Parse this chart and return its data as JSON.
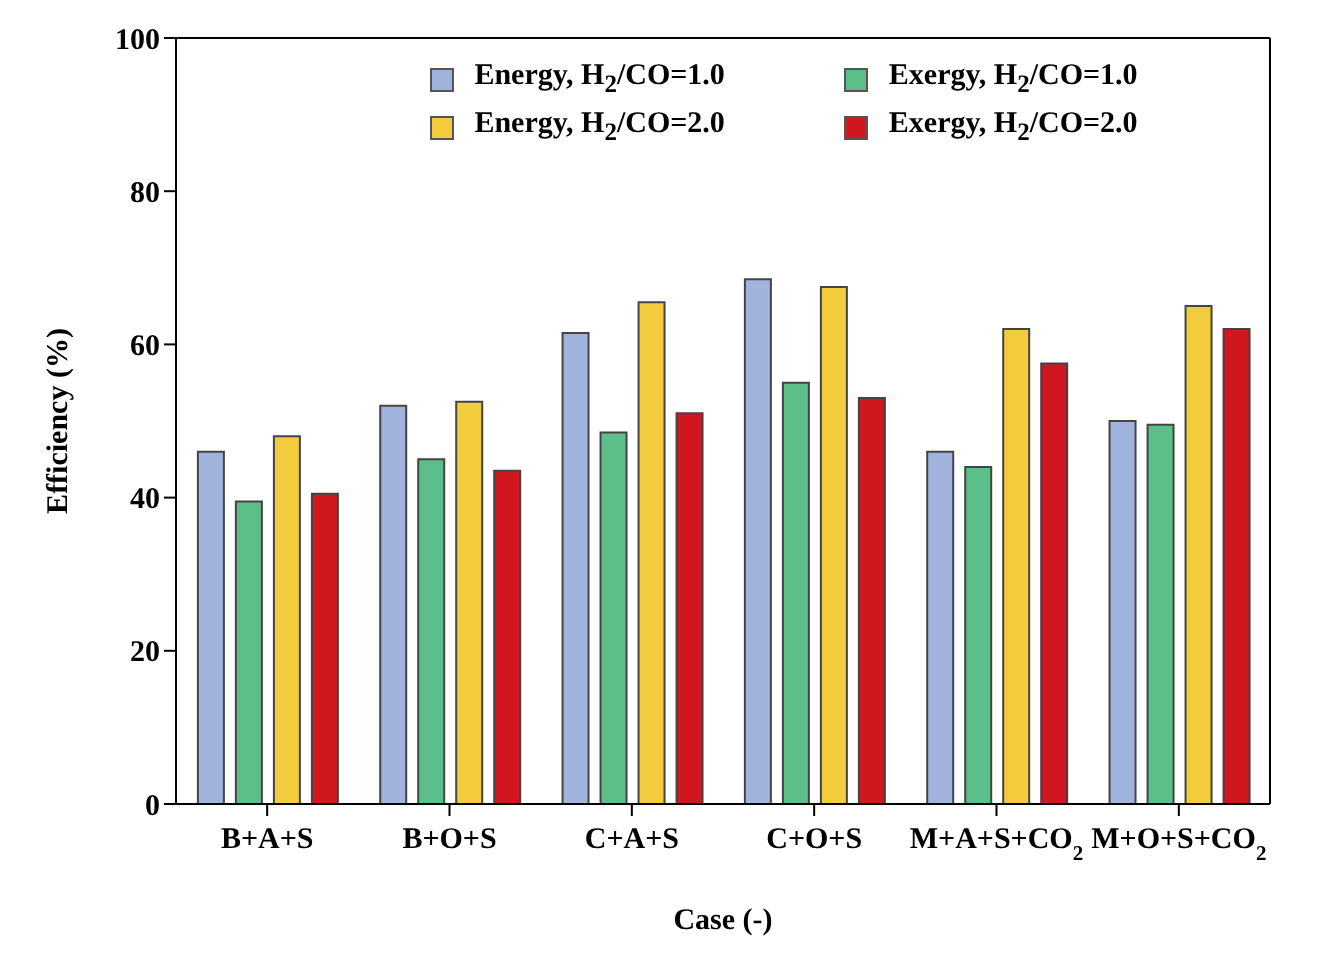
{
  "chart_data": {
    "type": "bar",
    "xlabel": "Case (-)",
    "ylabel": "Efficiency (%)",
    "categories": [
      "B+A+S",
      "B+O+S",
      "C+A+S",
      "C+O+S",
      "M+A+S+CO$_{2}$",
      "M+O+S+CO$_{2}$"
    ],
    "series": [
      {
        "name": "Energy, H$_{2}$/CO=1.0",
        "color": "#9fb3dd",
        "values": [
          46,
          52,
          61.5,
          68.5,
          46,
          50
        ]
      },
      {
        "name": "Exergy, H$_{2}$/CO=1.0",
        "color": "#5cbf8a",
        "values": [
          39.5,
          45,
          48.5,
          55,
          44,
          49.5
        ]
      },
      {
        "name": "Energy, H$_{2}$/CO=2.0",
        "color": "#f2cc3c",
        "values": [
          48,
          52.5,
          65.5,
          67.5,
          62,
          65
        ]
      },
      {
        "name": "Exergy, H$_{2}$/CO=2.0",
        "color": "#d0161e",
        "values": [
          40.5,
          43.5,
          51,
          53,
          57.5,
          62
        ]
      }
    ],
    "ylim": [
      0,
      100
    ],
    "yticks": [
      0,
      20,
      40,
      60,
      80,
      100
    ],
    "grid": false,
    "legend": "top"
  }
}
